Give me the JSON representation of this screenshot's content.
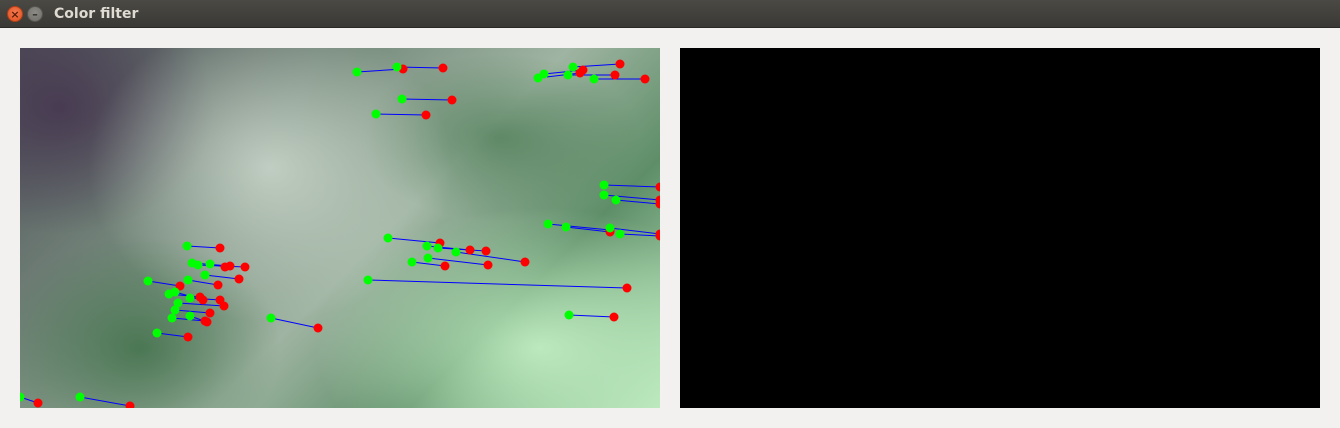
{
  "window": {
    "title": "Color filter",
    "close_glyph": "×",
    "minimize_glyph": "–"
  },
  "colors": {
    "track_start": "#00ff00",
    "track_end": "#ff0000",
    "track_line": "#0000ff",
    "filtered_background": "#000000"
  }
}
